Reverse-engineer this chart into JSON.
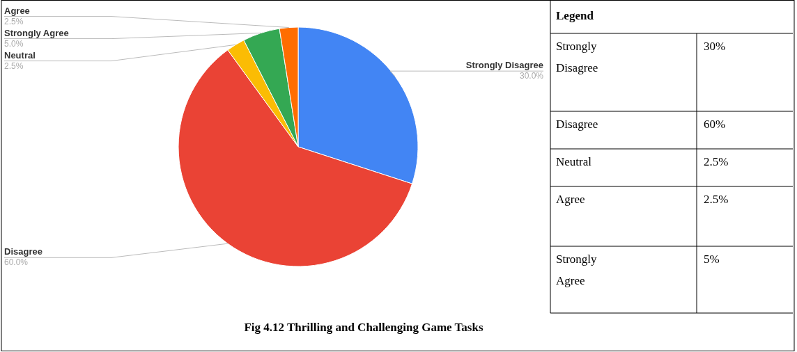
{
  "chart_data": [
    {
      "type": "pie",
      "title": "Fig 4.12 Thrilling and Challenging Game Tasks",
      "categories": [
        "Strongly Disagree",
        "Disagree",
        "Neutral",
        "Strongly Agree",
        "Agree"
      ],
      "values": [
        30,
        60,
        2.5,
        5,
        2.5
      ],
      "colors": [
        "#4285f4",
        "#ea4335",
        "#fbbc04",
        "#34a853",
        "#ff6d01"
      ],
      "value_labels": [
        "30.0%",
        "60.0%",
        "2.5%",
        "5.0%",
        "2.5%"
      ]
    },
    {
      "type": "other",
      "title": "Legend",
      "annotations": [
        "Strongly Disagree",
        "30%",
        "Disagree",
        "60%",
        "Neutral",
        "2.5%",
        "Agree",
        "2.5%",
        "Strongly Agree",
        "5%"
      ]
    }
  ]
}
